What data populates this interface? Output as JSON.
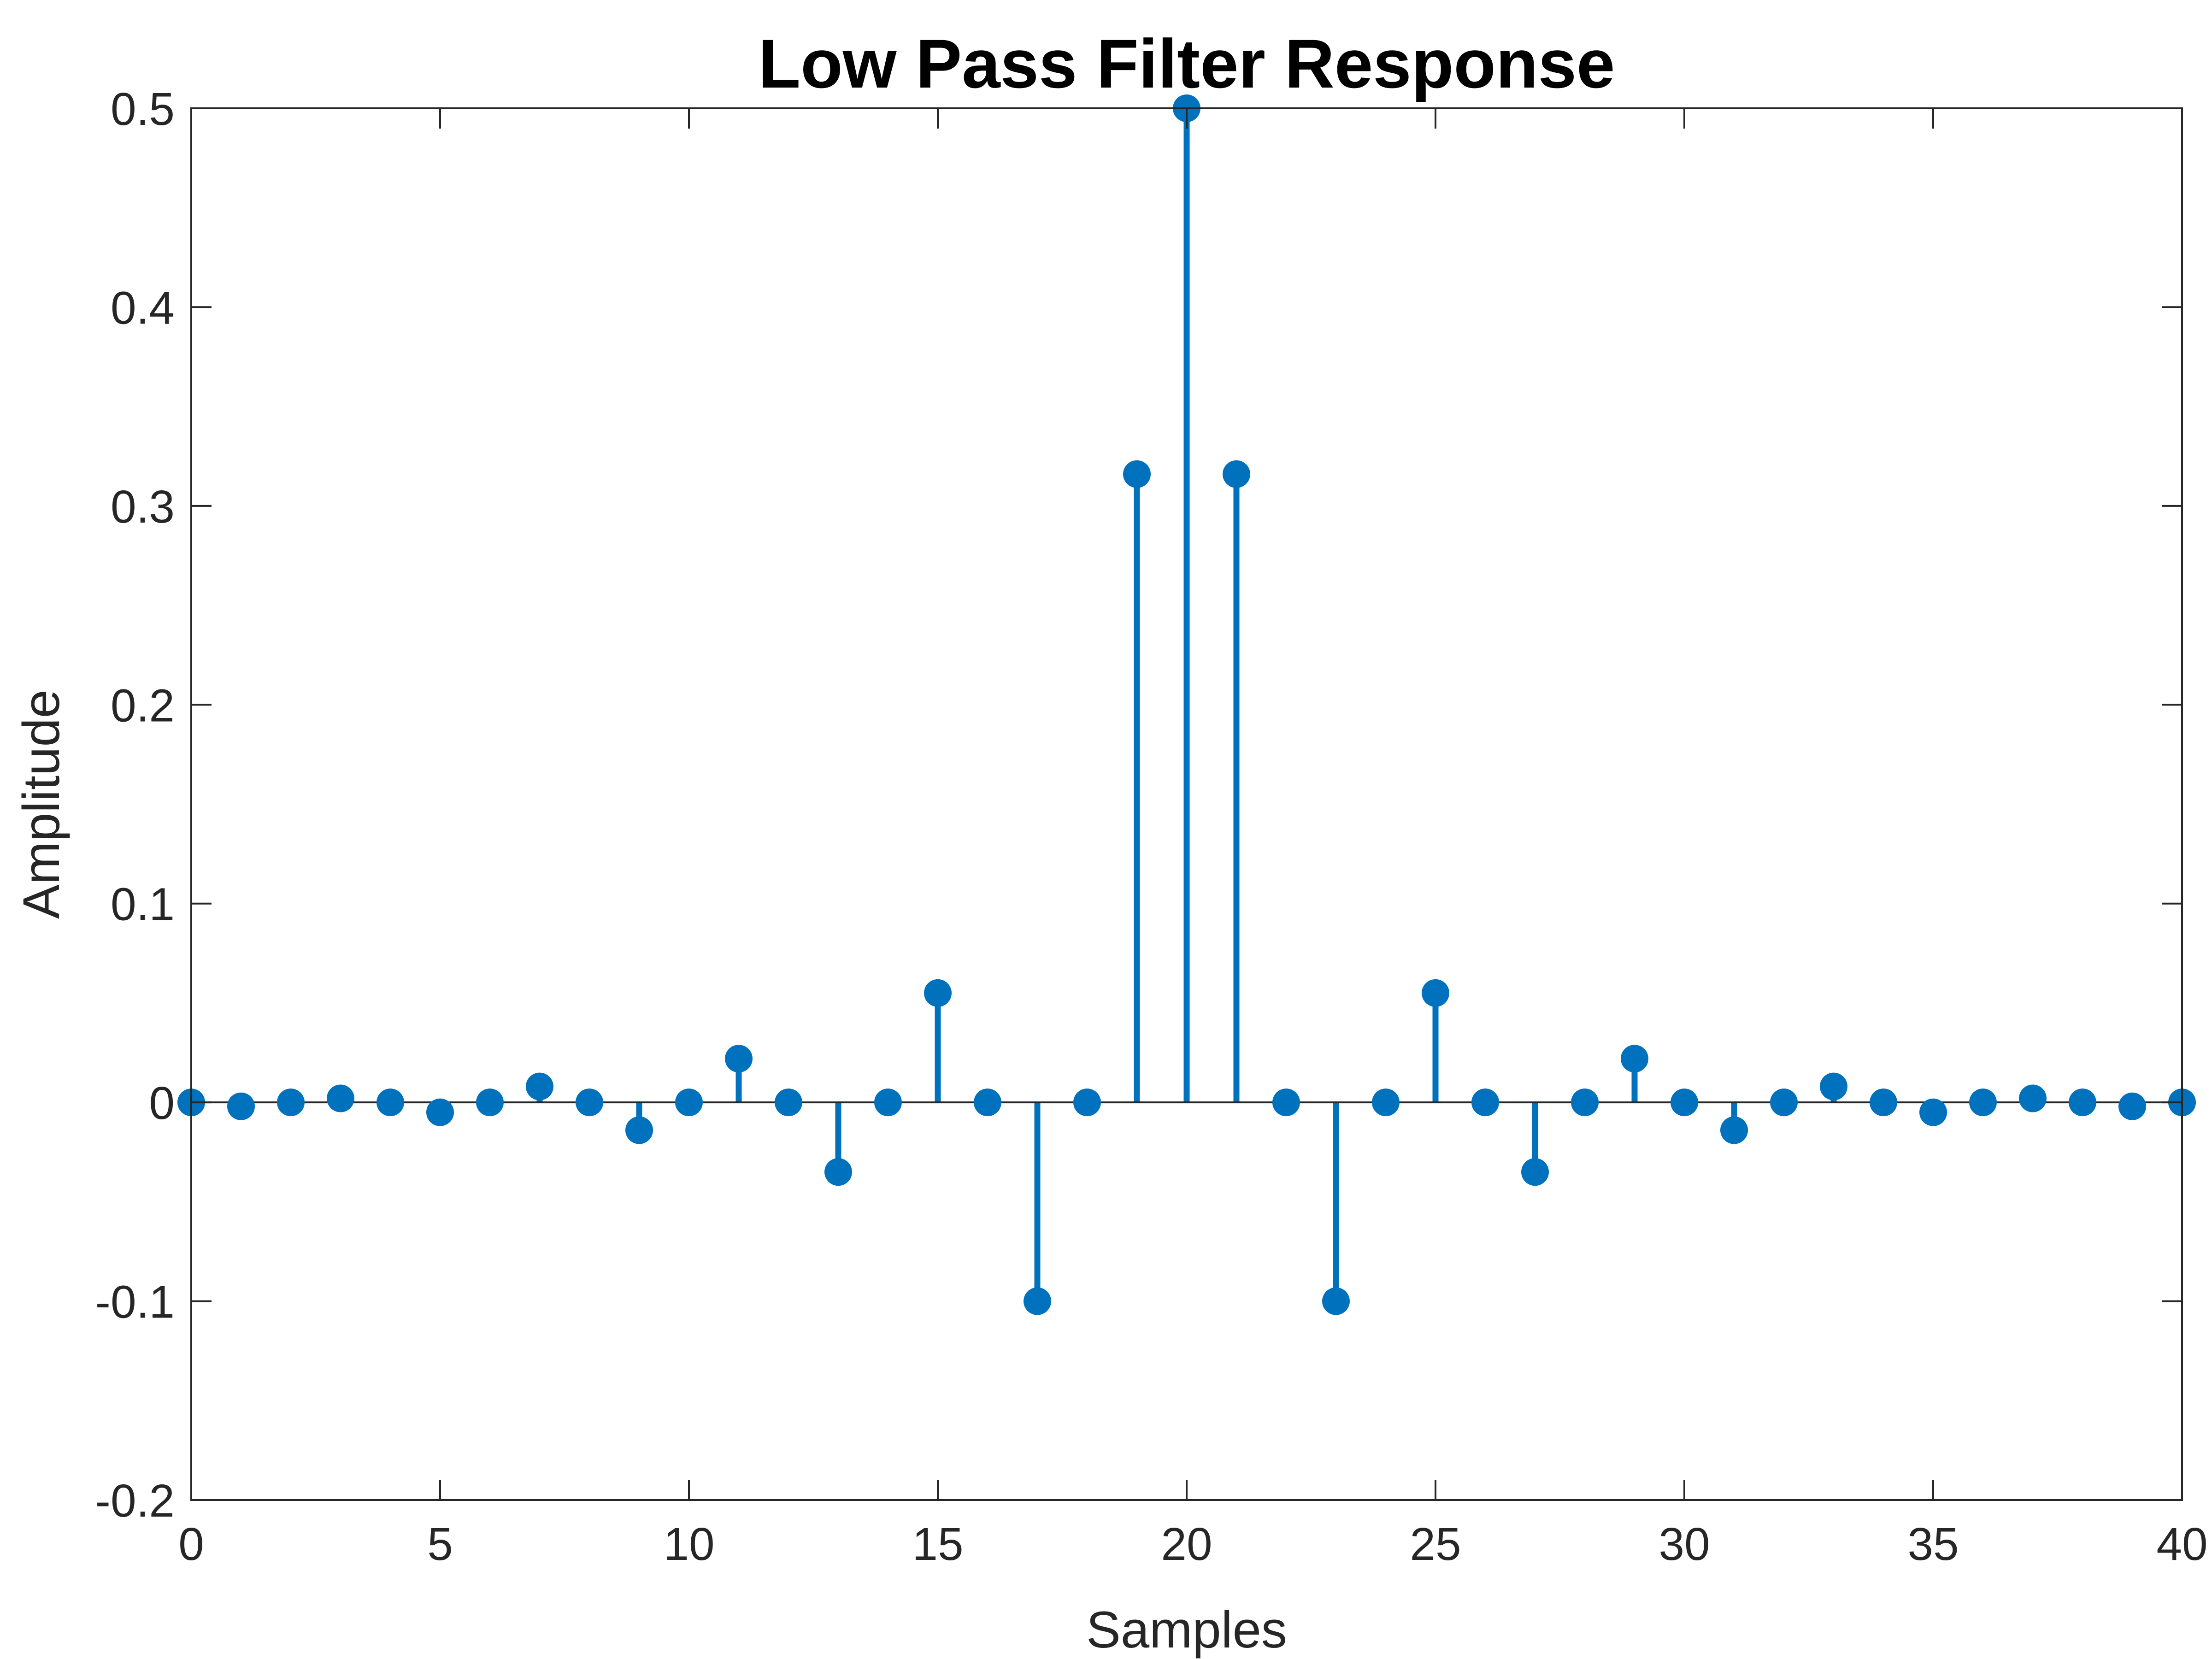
{
  "chart_data": {
    "type": "stem",
    "title": "Low Pass Filter Response",
    "xlabel": "Samples",
    "ylabel": "Amplitude",
    "xlim": [
      0,
      40
    ],
    "ylim": [
      -0.2,
      0.5
    ],
    "xticks": [
      0,
      5,
      10,
      15,
      20,
      25,
      30,
      35,
      40
    ],
    "xtick_labels": [
      "0",
      "5",
      "10",
      "15",
      "20",
      "25",
      "30",
      "35",
      "40"
    ],
    "yticks": [
      -0.2,
      -0.1,
      0,
      0.1,
      0.2,
      0.3,
      0.4,
      0.5
    ],
    "ytick_labels": [
      "-0.2",
      "-0.1",
      "0",
      "0.1",
      "0.2",
      "0.3",
      "0.4",
      "0.5"
    ],
    "grid": false,
    "baseline": 0,
    "series": [
      {
        "color": "#0072BD",
        "x": [
          0,
          1,
          2,
          3,
          4,
          5,
          6,
          7,
          8,
          9,
          10,
          11,
          12,
          13,
          14,
          15,
          16,
          17,
          18,
          19,
          20,
          21,
          22,
          23,
          24,
          25,
          26,
          27,
          28,
          29,
          30,
          31,
          32,
          33,
          34,
          35,
          36,
          37,
          38,
          39,
          40
        ],
        "y": [
          0,
          -0.002,
          0,
          0.002,
          0,
          -0.005,
          0,
          0.008,
          0,
          -0.014,
          0,
          0.022,
          0,
          -0.035,
          0,
          0.055,
          0,
          -0.1,
          0,
          0.316,
          0.5,
          0.316,
          0,
          -0.1,
          0,
          0.055,
          0,
          -0.035,
          0,
          0.022,
          0,
          -0.014,
          0,
          0.008,
          0,
          -0.005,
          0,
          0.002,
          0,
          -0.002,
          0
        ]
      }
    ]
  }
}
